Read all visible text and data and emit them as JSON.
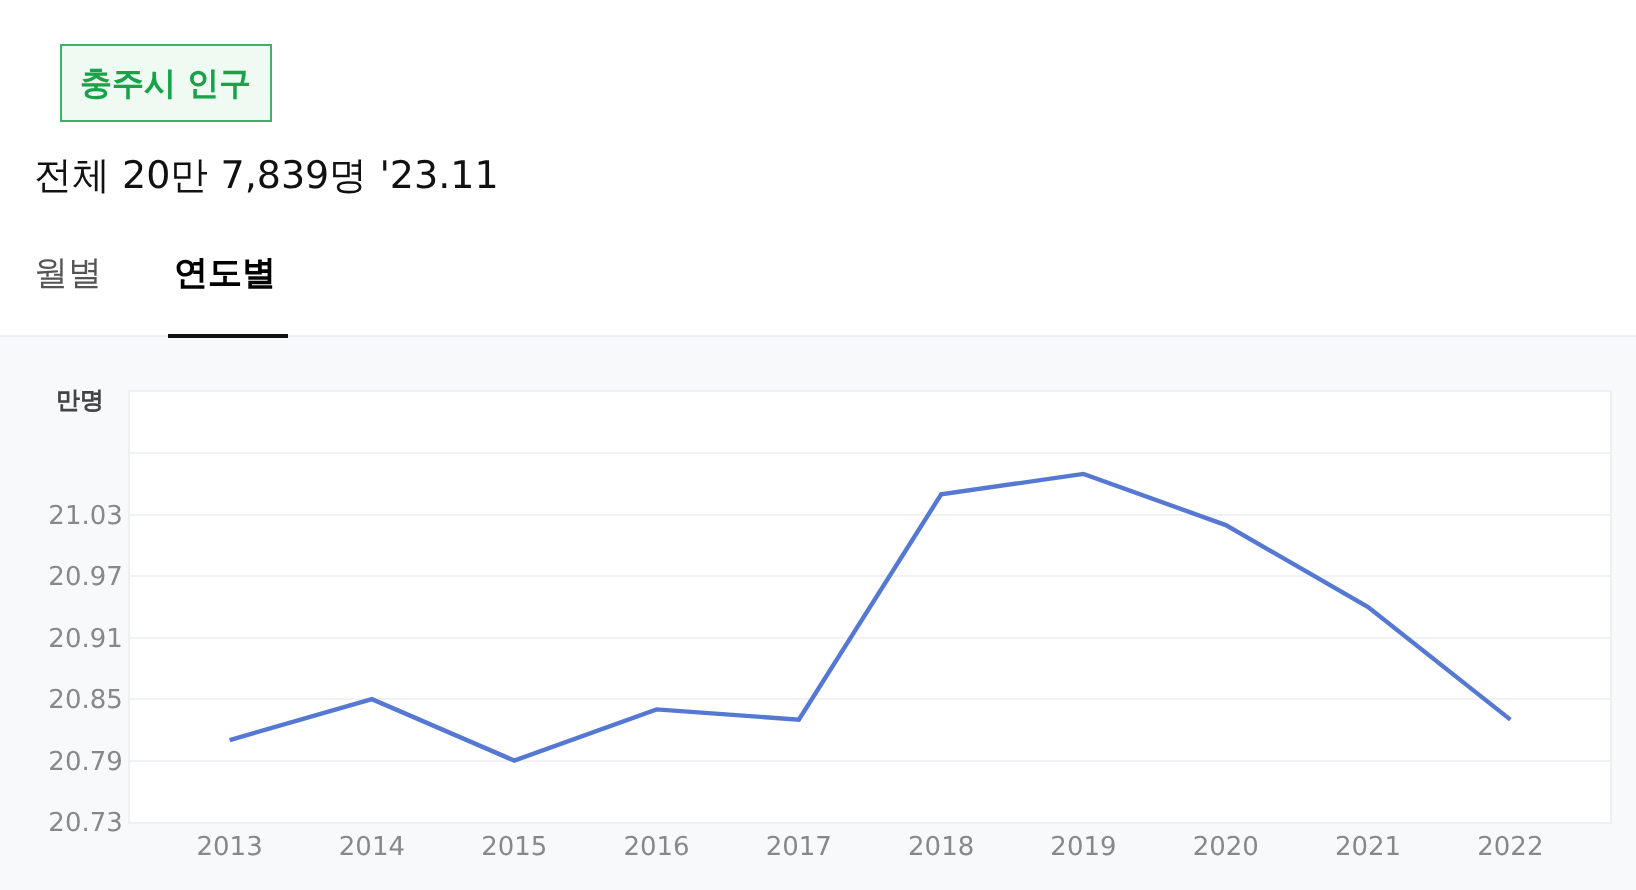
{
  "chart_data": {
    "type": "line",
    "title": "충주시 인구",
    "subtitle": "전체 20만 7,839명 '23.11",
    "ylabel": "만명",
    "annotations": [
      "월별",
      "연도별"
    ],
    "categories": [
      "2013",
      "2014",
      "2015",
      "2016",
      "2017",
      "2018",
      "2019",
      "2020",
      "2021",
      "2022"
    ],
    "series": [
      {
        "color": "#5578d3",
        "values": [
          20.81,
          20.85,
          20.79,
          20.84,
          20.83,
          21.05,
          21.07,
          21.02,
          20.94,
          20.83
        ]
      }
    ],
    "ylim": [
      20.73,
      21.15
    ],
    "yticks": [
      20.73,
      20.79,
      20.85,
      20.91,
      20.97,
      21.03,
      {
        "value": 21.09,
        "label": null
      },
      {
        "value": 21.15,
        "label": null
      }
    ],
    "grid": "y",
    "marker": "none",
    "line_style": "solid"
  }
}
